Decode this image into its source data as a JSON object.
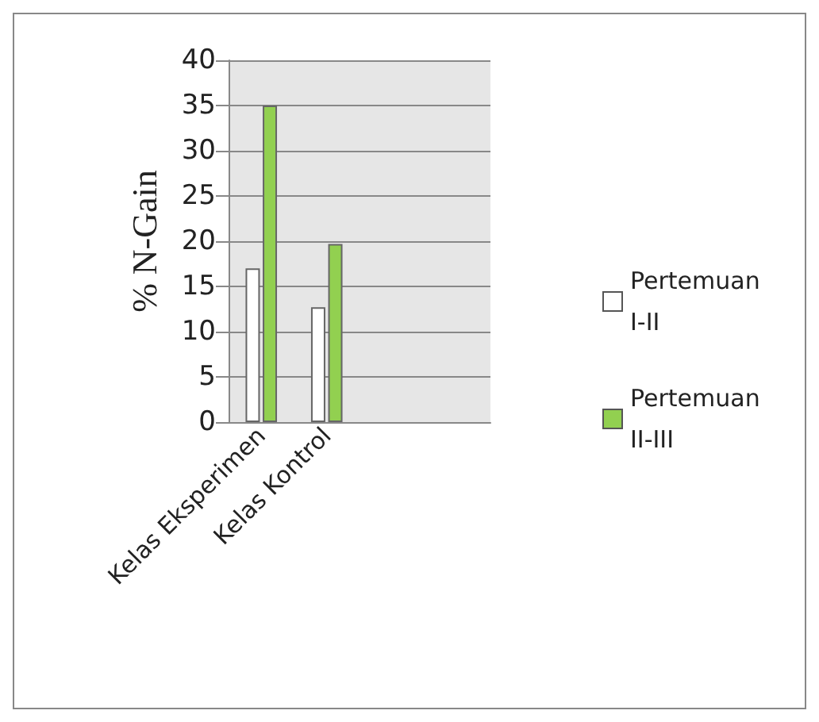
{
  "chart_data": {
    "type": "bar",
    "ylabel": "% N-Gain",
    "categories": [
      "Kelas Eksperimen",
      "Kelas Kontrol",
      null,
      null
    ],
    "series": [
      {
        "name": "Pertemuan I-II",
        "color": "#ffffff",
        "values": [
          17,
          12.7,
          null,
          null
        ]
      },
      {
        "name": "Pertemuan II-III",
        "color": "#92d050",
        "values": [
          35,
          19.7,
          null,
          null
        ]
      }
    ],
    "ylim": [
      0,
      40
    ],
    "yticks": [
      0,
      5,
      10,
      15,
      20,
      25,
      30,
      35,
      40
    ],
    "grid": "y",
    "legend": "right"
  }
}
